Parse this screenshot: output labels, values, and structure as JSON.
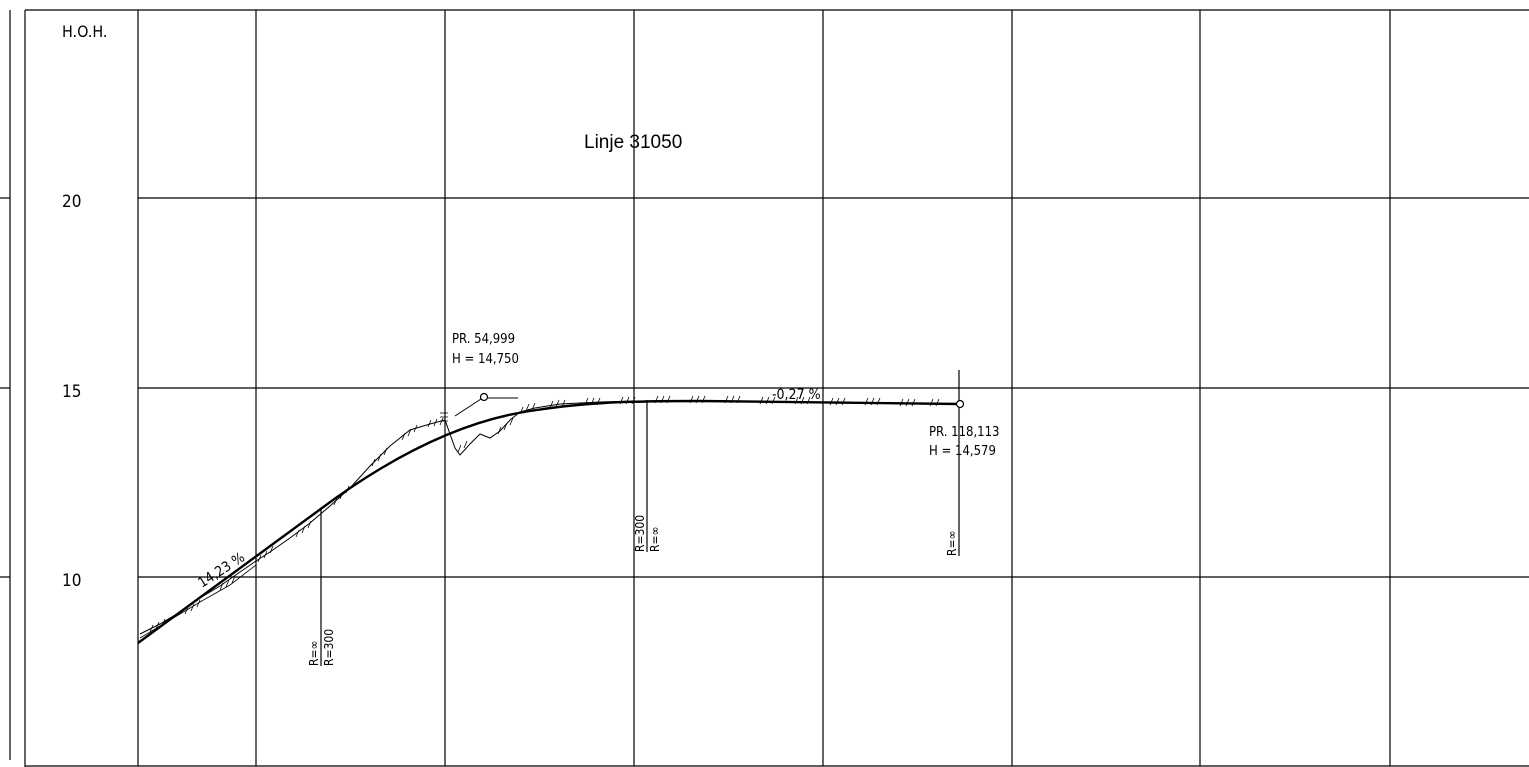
{
  "drawing": {
    "title": "Linje 31050",
    "axis_label": "H.O.H.",
    "y_ticks": [
      "20",
      "15",
      "10"
    ]
  },
  "chart_data": {
    "type": "line",
    "title": "Linje 31050",
    "ylabel": "H.O.H.",
    "y_ticks": [
      20,
      15,
      10
    ],
    "series": [
      {
        "values": [
          [
            0,
            8.3
          ],
          [
            10,
            9.3
          ],
          [
            20,
            10.4
          ],
          [
            30,
            11.8
          ],
          [
            40,
            13.0
          ],
          [
            50,
            14.0
          ],
          [
            55,
            14.75
          ],
          [
            60,
            14.55
          ],
          [
            70,
            14.65
          ],
          [
            80,
            14.66
          ],
          [
            90,
            14.62
          ],
          [
            100,
            14.6
          ],
          [
            118.1,
            14.579
          ]
        ]
      }
    ]
  },
  "annotations": {
    "grade_left": "14,23 %",
    "grade_right": "-0,27 %",
    "pr1_station": "PR. 54,999",
    "pr1_height": "H = 14,750",
    "pr2_station": "PR. 118,113",
    "pr2_height": "H = 14,579",
    "curve1_a": "R=∞",
    "curve1_b": "R=300",
    "curve2_a": "R=300",
    "curve2_b": "R=∞",
    "curve3_a": "R=∞"
  },
  "colors": {
    "ink": "#000000",
    "paper": "#ffffff"
  }
}
